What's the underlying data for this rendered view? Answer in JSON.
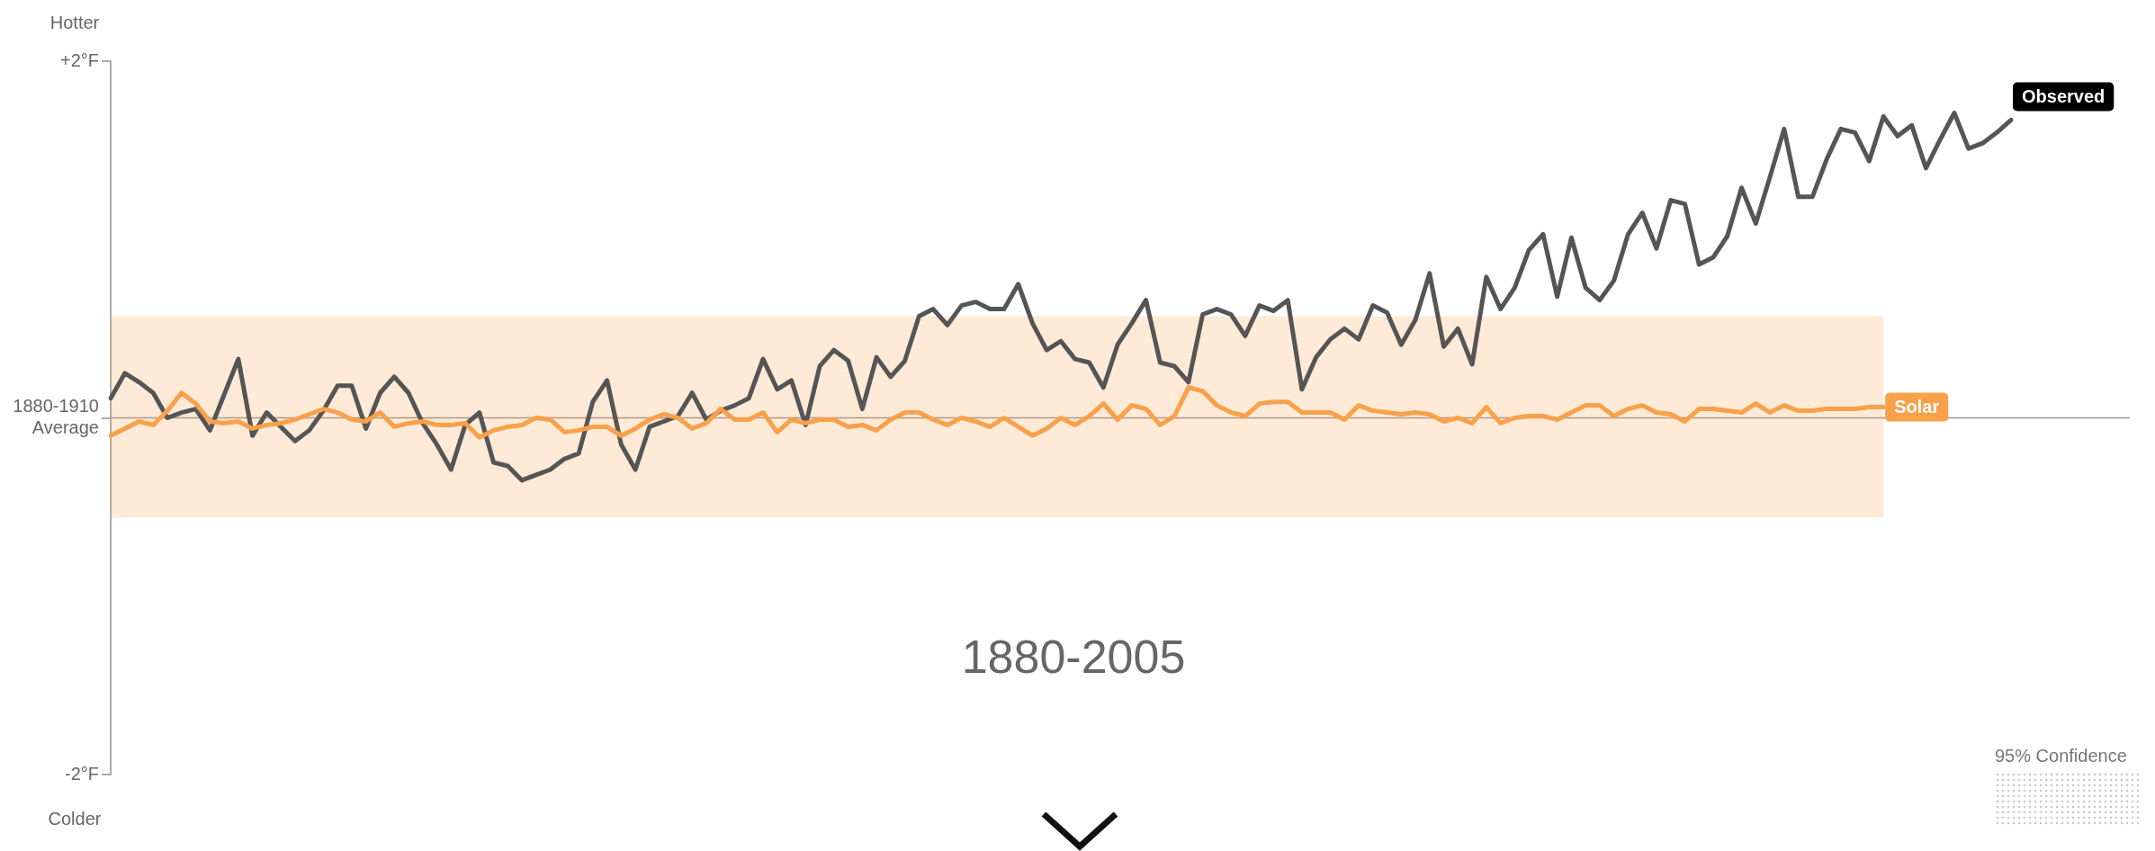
{
  "chart_data": {
    "type": "line",
    "categories": [
      null,
      null,
      null,
      null,
      null,
      null,
      null,
      null,
      null,
      null,
      null,
      null,
      null,
      null,
      null,
      null,
      null,
      null,
      null,
      null,
      null,
      null,
      null,
      null,
      null,
      null,
      null,
      null,
      null,
      null,
      null,
      null,
      null,
      null,
      null,
      null,
      null,
      null,
      null,
      null,
      null,
      null,
      null,
      null,
      null,
      null,
      null,
      null,
      null,
      null,
      null,
      null,
      null,
      null,
      null,
      null,
      null,
      null,
      null,
      null,
      null,
      null,
      null,
      null,
      null,
      null,
      null,
      null,
      null,
      null,
      null,
      null,
      null,
      null,
      null,
      null,
      null,
      null,
      null,
      null,
      null,
      null,
      null,
      null,
      null,
      null,
      null,
      null,
      null,
      null,
      null,
      null,
      null,
      null,
      null,
      null,
      null,
      null,
      null,
      null,
      null,
      null,
      null,
      null,
      null,
      null,
      null,
      null,
      null,
      null,
      null,
      null,
      null,
      null,
      null,
      null,
      null,
      null,
      null,
      null,
      null,
      null,
      null,
      null,
      null,
      null,
      null,
      null,
      null,
      null,
      null,
      null,
      null,
      null,
      null
    ],
    "series": [
      {
        "name": "Solar",
        "color": "#f9a04a",
        "values": [
          -0.1,
          -0.06,
          -0.02,
          -0.04,
          0.04,
          0.14,
          0.08,
          -0.02,
          -0.03,
          -0.02,
          -0.06,
          -0.04,
          -0.03,
          -0.01,
          0.02,
          0.05,
          0.03,
          -0.01,
          -0.02,
          0.03,
          -0.05,
          -0.03,
          -0.02,
          -0.04,
          -0.04,
          -0.03,
          -0.11,
          -0.07,
          -0.05,
          -0.04,
          0.0,
          -0.01,
          -0.08,
          -0.07,
          -0.05,
          -0.05,
          -0.1,
          -0.06,
          -0.01,
          0.02,
          0.0,
          -0.06,
          -0.03,
          0.05,
          -0.01,
          -0.01,
          0.03,
          -0.08,
          -0.01,
          -0.03,
          -0.01,
          -0.01,
          -0.05,
          -0.04,
          -0.07,
          -0.01,
          0.03,
          0.03,
          -0.01,
          -0.04,
          0.0,
          -0.02,
          -0.05,
          0.0,
          -0.05,
          -0.1,
          -0.06,
          0.0,
          -0.04,
          0.01,
          0.08,
          -0.01,
          0.07,
          0.05,
          -0.04,
          0.01,
          0.17,
          0.15,
          0.07,
          0.03,
          0.01,
          0.08,
          0.09,
          0.09,
          0.03,
          0.03,
          0.03,
          -0.01,
          0.07,
          0.04,
          0.03,
          0.02,
          0.03,
          0.02,
          -0.02,
          0.0,
          -0.03,
          0.06,
          -0.03,
          0.0,
          0.01,
          0.01,
          -0.01,
          0.03,
          0.07,
          0.07,
          0.01,
          0.05,
          0.07,
          0.03,
          0.02,
          -0.02,
          0.05,
          0.05,
          0.04,
          0.03,
          0.08,
          0.03,
          0.07,
          0.04,
          0.04,
          0.05,
          0.05,
          0.05,
          0.06,
          0.06,
          null,
          null,
          null,
          null,
          null,
          null,
          null,
          null,
          null
        ],
        "upper": [
          0.57,
          0.57,
          0.57,
          0.57,
          0.57,
          0.57,
          0.57,
          0.57,
          0.57,
          0.57,
          0.57,
          0.57,
          0.57,
          0.57,
          0.57,
          0.57,
          0.57,
          0.57,
          0.57,
          0.57,
          0.57,
          0.57,
          0.57,
          0.57,
          0.57,
          0.57,
          0.57,
          0.57,
          0.57,
          0.57,
          0.57,
          0.57,
          0.57,
          0.57,
          0.57,
          0.57,
          0.57,
          0.57,
          0.57,
          0.57,
          0.57,
          0.57,
          0.57,
          0.57,
          0.57,
          0.57,
          0.57,
          0.57,
          0.57,
          0.57,
          0.57,
          0.57,
          0.57,
          0.57,
          0.57,
          0.57,
          0.57,
          0.57,
          0.57,
          0.57,
          0.57,
          0.57,
          0.57,
          0.57,
          0.57,
          0.57,
          0.57,
          0.57,
          0.57,
          0.57,
          0.57,
          0.57,
          0.57,
          0.57,
          0.57,
          0.57,
          0.57,
          0.57,
          0.57,
          0.57,
          0.57,
          0.57,
          0.57,
          0.57,
          0.57,
          0.57,
          0.57,
          0.57,
          0.57,
          0.57,
          0.57,
          0.57,
          0.57,
          0.57,
          0.57,
          0.57,
          0.57,
          0.57,
          0.57,
          0.57,
          0.57,
          0.57,
          0.57,
          0.57,
          0.57,
          0.57,
          0.57,
          0.57,
          0.57,
          0.57,
          0.57,
          0.57,
          0.57,
          0.57,
          0.57,
          0.57,
          0.57,
          0.57,
          0.57,
          0.57,
          0.57,
          0.57,
          0.57,
          0.57,
          0.57,
          0.57,
          null,
          null,
          null,
          null,
          null,
          null,
          null,
          null,
          null
        ],
        "lower": [
          -0.56,
          -0.56,
          -0.56,
          -0.56,
          -0.56,
          -0.56,
          -0.56,
          -0.56,
          -0.56,
          -0.56,
          -0.56,
          -0.56,
          -0.56,
          -0.56,
          -0.56,
          -0.56,
          -0.56,
          -0.56,
          -0.56,
          -0.56,
          -0.56,
          -0.56,
          -0.56,
          -0.56,
          -0.56,
          -0.56,
          -0.56,
          -0.56,
          -0.56,
          -0.56,
          -0.56,
          -0.56,
          -0.56,
          -0.56,
          -0.56,
          -0.56,
          -0.56,
          -0.56,
          -0.56,
          -0.56,
          -0.56,
          -0.56,
          -0.56,
          -0.56,
          -0.56,
          -0.56,
          -0.56,
          -0.56,
          -0.56,
          -0.56,
          -0.56,
          -0.56,
          -0.56,
          -0.56,
          -0.56,
          -0.56,
          -0.56,
          -0.56,
          -0.56,
          -0.56,
          -0.56,
          -0.56,
          -0.56,
          -0.56,
          -0.56,
          -0.56,
          -0.56,
          -0.56,
          -0.56,
          -0.56,
          -0.56,
          -0.56,
          -0.56,
          -0.56,
          -0.56,
          -0.56,
          -0.56,
          -0.56,
          -0.56,
          -0.56,
          -0.56,
          -0.56,
          -0.56,
          -0.56,
          -0.56,
          -0.56,
          -0.56,
          -0.56,
          -0.56,
          -0.56,
          -0.56,
          -0.56,
          -0.56,
          -0.56,
          -0.56,
          -0.56,
          -0.56,
          -0.56,
          -0.56,
          -0.56,
          -0.56,
          -0.56,
          -0.56,
          -0.56,
          -0.56,
          -0.56,
          -0.56,
          -0.56,
          -0.56,
          -0.56,
          -0.56,
          -0.56,
          -0.56,
          -0.56,
          -0.56,
          -0.56,
          -0.56,
          -0.56,
          -0.56,
          -0.56,
          -0.56,
          -0.56,
          -0.56,
          -0.56,
          -0.56,
          -0.56,
          null,
          null,
          null,
          null,
          null,
          null,
          null,
          null,
          null
        ]
      },
      {
        "name": "Observed",
        "color": "#555555",
        "values": [
          0.11,
          0.25,
          0.2,
          0.14,
          0.0,
          0.03,
          0.05,
          -0.07,
          0.13,
          0.33,
          -0.1,
          0.03,
          -0.05,
          -0.13,
          -0.07,
          0.04,
          0.18,
          0.18,
          -0.06,
          0.14,
          0.23,
          0.14,
          -0.03,
          -0.15,
          -0.29,
          -0.04,
          0.03,
          -0.25,
          -0.27,
          -0.35,
          -0.32,
          -0.29,
          -0.23,
          -0.2,
          0.09,
          0.21,
          -0.15,
          -0.29,
          -0.05,
          -0.02,
          0.01,
          0.14,
          -0.01,
          0.04,
          0.07,
          0.11,
          0.33,
          0.16,
          0.21,
          -0.04,
          0.29,
          0.38,
          0.32,
          0.05,
          0.34,
          0.23,
          0.32,
          0.57,
          0.61,
          0.52,
          0.63,
          0.65,
          0.61,
          0.61,
          0.75,
          0.53,
          0.38,
          0.43,
          0.33,
          0.31,
          0.17,
          0.41,
          0.53,
          0.66,
          0.31,
          0.29,
          0.2,
          0.58,
          0.61,
          0.58,
          0.46,
          0.63,
          0.6,
          0.66,
          0.16,
          0.34,
          0.44,
          0.5,
          0.44,
          0.63,
          0.59,
          0.41,
          0.55,
          0.81,
          0.4,
          0.5,
          0.3,
          0.79,
          0.61,
          0.73,
          0.94,
          1.03,
          0.68,
          1.01,
          0.73,
          0.66,
          0.77,
          1.03,
          1.15,
          0.95,
          1.22,
          1.2,
          0.86,
          0.9,
          1.02,
          1.29,
          1.09,
          1.35,
          1.62,
          1.24,
          1.24,
          1.45,
          1.62,
          1.6,
          1.44,
          1.69,
          1.58,
          1.64,
          1.4,
          1.56,
          1.71,
          1.51,
          1.54,
          1.6,
          1.67
        ]
      }
    ],
    "ylim": [
      -2,
      2
    ],
    "yticks": [
      {
        "value": 2,
        "label": "+2°F"
      },
      {
        "value": 0,
        "label": "1880-1910 Average"
      },
      {
        "value": -2,
        "label": "-2°F"
      }
    ],
    "ref_lines": [
      {
        "axis": "y",
        "value": 0,
        "color": "#999999"
      }
    ],
    "annotations": [
      "Hotter",
      "Colder",
      "1880-2005"
    ],
    "legend_title": "95% Confidence",
    "grid": false,
    "marker": "none",
    "line_style": "solid"
  }
}
